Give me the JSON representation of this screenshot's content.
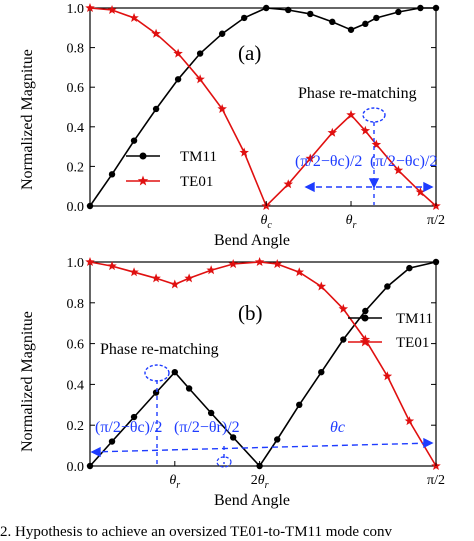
{
  "chart_data": [
    {
      "type": "line",
      "panel_label": "(a)",
      "xlabel": "Bend Angle",
      "ylabel": "Normalized Magnitue",
      "ylim": [
        0,
        1
      ],
      "y_ticks": [
        "0.0",
        "0.2",
        "0.4",
        "0.6",
        "0.8",
        "1.0"
      ],
      "x_ticks": [
        "θc",
        "θr",
        "π/2"
      ],
      "x_tick_values": [
        0.8,
        1.185,
        1.5708
      ],
      "xlim": [
        0,
        1.5708
      ],
      "legend_position": "center-left",
      "grid": false,
      "series": [
        {
          "name": "TM11",
          "marker": "circle",
          "color": "#000000",
          "x": [
            0,
            0.1,
            0.2,
            0.3,
            0.4,
            0.5,
            0.6,
            0.7,
            0.8,
            0.9,
            1.0,
            1.1,
            1.185,
            1.25,
            1.3,
            1.4,
            1.5,
            1.5708
          ],
          "values": [
            0.0,
            0.16,
            0.33,
            0.49,
            0.64,
            0.77,
            0.87,
            0.95,
            1.0,
            0.99,
            0.97,
            0.93,
            0.89,
            0.92,
            0.95,
            0.98,
            1.0,
            1.0
          ]
        },
        {
          "name": "TE01",
          "marker": "star",
          "color": "#e01010",
          "x": [
            0,
            0.1,
            0.2,
            0.3,
            0.4,
            0.5,
            0.6,
            0.7,
            0.8,
            0.9,
            1.0,
            1.1,
            1.185,
            1.25,
            1.3,
            1.4,
            1.5,
            1.5708
          ],
          "values": [
            1.0,
            0.99,
            0.95,
            0.87,
            0.77,
            0.64,
            0.49,
            0.27,
            0.0,
            0.11,
            0.24,
            0.37,
            0.46,
            0.38,
            0.31,
            0.18,
            0.07,
            0.0
          ]
        }
      ],
      "annotations": {
        "title_note": "Phase re-matching",
        "left_span": "(π/2−θc)/2",
        "right_span": "(π/2−θc)/2"
      }
    },
    {
      "type": "line",
      "panel_label": "(b)",
      "xlabel": "Bend Angle",
      "ylabel": "Normalized Magnitue",
      "ylim": [
        0,
        1
      ],
      "y_ticks": [
        "0.0",
        "0.2",
        "0.4",
        "0.6",
        "0.8",
        "1.0"
      ],
      "x_ticks": [
        "θr",
        "2θr",
        "π/2"
      ],
      "x_tick_values": [
        0.385,
        0.77,
        1.5708
      ],
      "xlim": [
        0,
        1.5708
      ],
      "legend_position": "center-right",
      "grid": false,
      "series": [
        {
          "name": "TM11",
          "marker": "circle",
          "color": "#000000",
          "x": [
            0,
            0.1,
            0.2,
            0.3,
            0.385,
            0.45,
            0.55,
            0.65,
            0.77,
            0.85,
            0.95,
            1.05,
            1.15,
            1.25,
            1.35,
            1.45,
            1.5708
          ],
          "values": [
            0.0,
            0.12,
            0.24,
            0.36,
            0.46,
            0.38,
            0.26,
            0.14,
            0.0,
            0.13,
            0.3,
            0.46,
            0.62,
            0.76,
            0.88,
            0.97,
            1.0
          ]
        },
        {
          "name": "TE01",
          "marker": "star",
          "color": "#e01010",
          "x": [
            0,
            0.1,
            0.2,
            0.3,
            0.385,
            0.45,
            0.55,
            0.65,
            0.77,
            0.85,
            0.95,
            1.05,
            1.15,
            1.25,
            1.35,
            1.45,
            1.5708
          ],
          "values": [
            1.0,
            0.98,
            0.95,
            0.92,
            0.89,
            0.92,
            0.96,
            0.99,
            1.0,
            0.99,
            0.95,
            0.88,
            0.77,
            0.62,
            0.44,
            0.22,
            0.0
          ]
        }
      ],
      "annotations": {
        "title_note": "Phase re-matching",
        "left_span": "(π/2−θc)/2",
        "mid_span": "(π/2−θr)/2",
        "right_span": "θc"
      }
    }
  ],
  "caption": "2.   Hypothesis to achieve an oversized TE01-to-TM11 mode conv"
}
